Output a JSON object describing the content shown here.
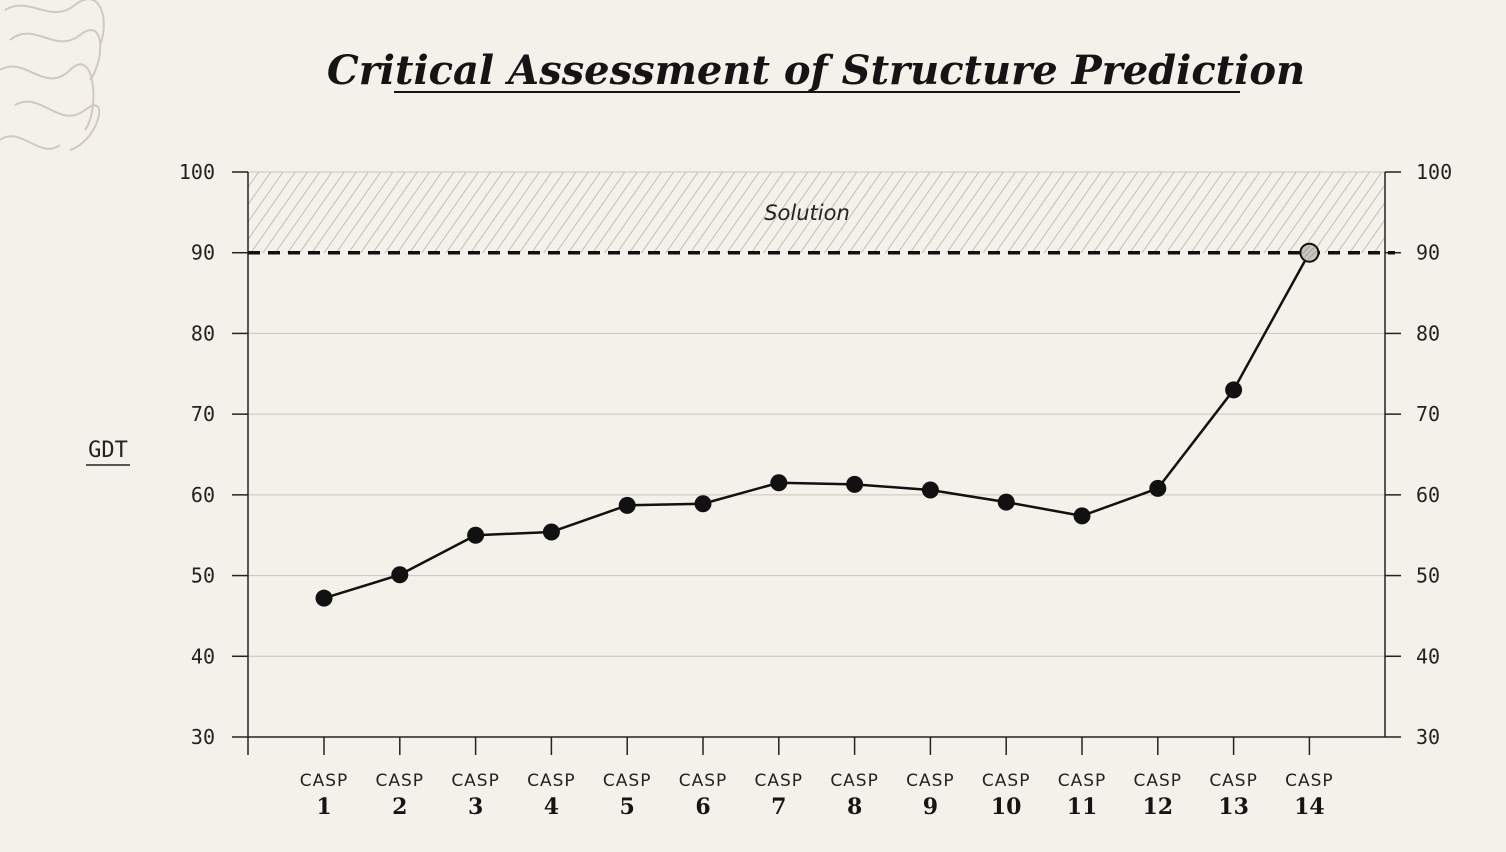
{
  "chart_data": {
    "type": "line",
    "title": "Critical Assessment of Structure Prediction",
    "ylabel": "GDT",
    "ylim": [
      30,
      100
    ],
    "yticks": [
      100,
      90,
      80,
      70,
      60,
      50,
      40,
      30
    ],
    "categories": [
      {
        "prefix": "CASP",
        "num": "1"
      },
      {
        "prefix": "CASP",
        "num": "2"
      },
      {
        "prefix": "CASP",
        "num": "3"
      },
      {
        "prefix": "CASP",
        "num": "4"
      },
      {
        "prefix": "CASP",
        "num": "5"
      },
      {
        "prefix": "CASP",
        "num": "6"
      },
      {
        "prefix": "CASP",
        "num": "7"
      },
      {
        "prefix": "CASP",
        "num": "8"
      },
      {
        "prefix": "CASP",
        "num": "9"
      },
      {
        "prefix": "CASP",
        "num": "10"
      },
      {
        "prefix": "CASP",
        "num": "11"
      },
      {
        "prefix": "CASP",
        "num": "12"
      },
      {
        "prefix": "CASP",
        "num": "13"
      },
      {
        "prefix": "CASP",
        "num": "14"
      }
    ],
    "values": [
      47.2,
      50.1,
      55.0,
      55.4,
      58.7,
      58.9,
      61.5,
      61.3,
      60.6,
      59.1,
      57.4,
      60.8,
      73.0,
      90.0
    ],
    "threshold": {
      "value": 90,
      "label": "Solution"
    },
    "grid": true,
    "colors": {
      "background": "#f4f1ea",
      "line": "#111111",
      "grid": "#c9c5bb",
      "hatch": "#bdb9ae",
      "highlight_point": "#c8c4ba"
    }
  }
}
